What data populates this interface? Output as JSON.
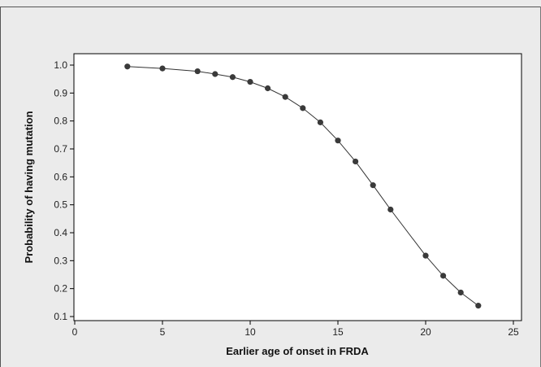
{
  "chart_data": {
    "type": "line",
    "title": "",
    "xlabel": "Earlier age of onset in FRDA",
    "ylabel": "Probability of having mutation",
    "xlim": [
      0,
      25
    ],
    "ylim": [
      0.1,
      1.0
    ],
    "x_ticks": [
      0,
      5,
      10,
      15,
      20,
      25
    ],
    "y_ticks": [
      0.1,
      0.2,
      0.3,
      0.4,
      0.5,
      0.6,
      0.7,
      0.8,
      0.9,
      1.0
    ],
    "x_tick_labels": [
      "0",
      "5",
      "10",
      "15",
      "20",
      "25"
    ],
    "y_tick_labels": [
      "0.1",
      "0.2",
      "0.3",
      "0.4",
      "0.5",
      "0.6",
      "0.7",
      "0.8",
      "0.9",
      "1.0"
    ],
    "grid": false,
    "legend": "none",
    "markers": true,
    "series": [
      {
        "x": [
          3,
          5,
          7,
          8,
          9,
          10,
          11,
          12,
          13,
          14,
          15,
          16,
          17,
          18,
          20,
          21,
          22,
          23
        ],
        "y": [
          0.995,
          0.988,
          0.978,
          0.968,
          0.957,
          0.94,
          0.917,
          0.886,
          0.846,
          0.795,
          0.73,
          0.655,
          0.57,
          0.483,
          0.318,
          0.246,
          0.186,
          0.139
        ]
      }
    ],
    "colors": {
      "outer_background": "#ebebeb",
      "plot_background": "#ffffff",
      "line": "#333333",
      "marker": "#3a3a3a",
      "axis": "#000000"
    }
  }
}
